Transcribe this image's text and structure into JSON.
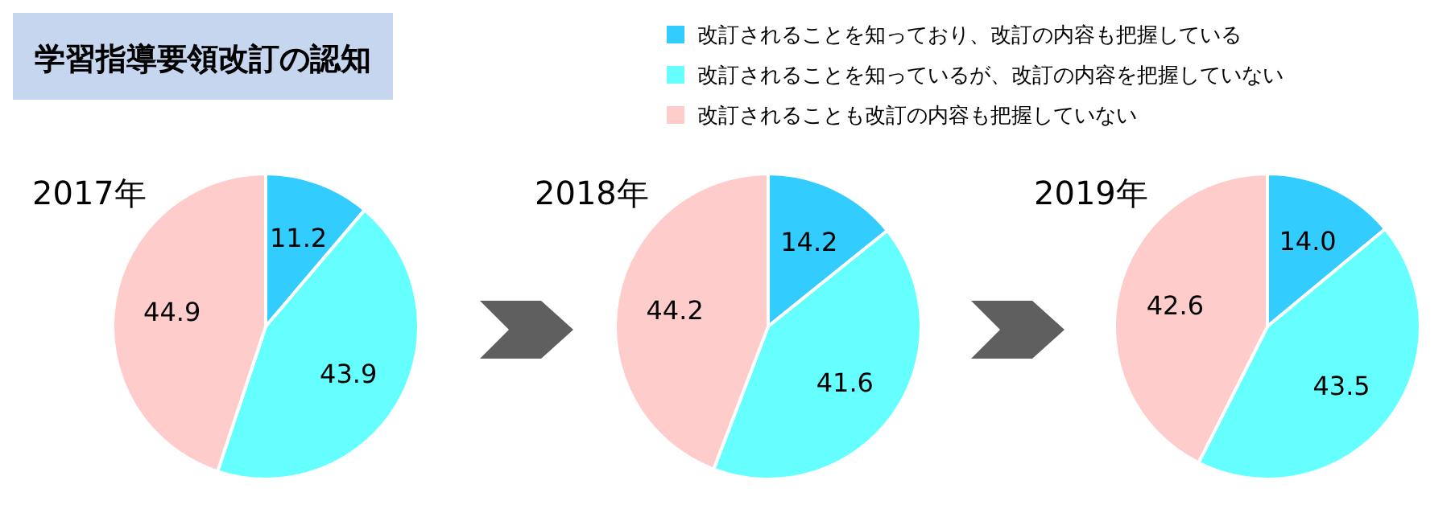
{
  "chart_data": [
    {
      "type": "pie",
      "title": "2017年",
      "annotations": [
        "学習指導要領改訂の認知"
      ],
      "legend": "top",
      "categories": [
        "改訂されることを知っており、改訂の内容も把握している",
        "改訂されることを知っているが、改訂の内容を把握していない",
        "改訂されることも改訂の内容も把握していない"
      ],
      "values": [
        11.2,
        43.9,
        44.9
      ],
      "value_labels": [
        "11.2",
        "43.9",
        "44.9"
      ],
      "colors": [
        "#33ccff",
        "#66ffff",
        "#ffcccc"
      ]
    },
    {
      "type": "pie",
      "title": "2018年",
      "categories": [
        null,
        null,
        null
      ],
      "values": [
        14.2,
        41.6,
        44.2
      ],
      "value_labels": [
        "14.2",
        "41.6",
        "44.2"
      ],
      "colors": [
        "#33ccff",
        "#66ffff",
        "#ffcccc"
      ]
    },
    {
      "type": "pie",
      "title": "2019年",
      "categories": [
        null,
        null,
        null
      ],
      "values": [
        14.0,
        43.5,
        42.6
      ],
      "value_labels": [
        "14.0",
        "43.5",
        "42.6"
      ],
      "colors": [
        "#33ccff",
        "#66ffff",
        "#ffcccc"
      ]
    }
  ]
}
